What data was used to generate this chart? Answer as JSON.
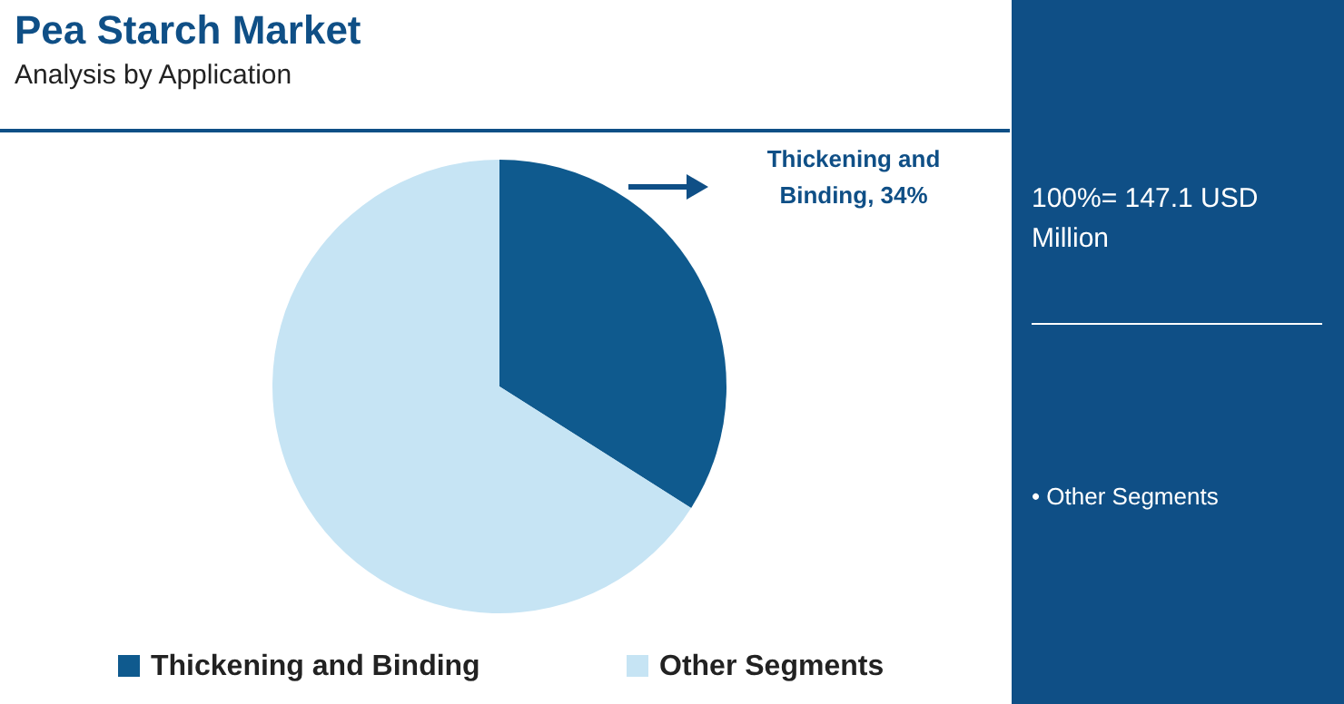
{
  "chart_data": {
    "type": "pie",
    "title": "Pea Starch Market",
    "subtitle": "Analysis by Application",
    "categories": [
      "Thickening and Binding",
      "Other Segments"
    ],
    "values": [
      34,
      66
    ],
    "colors": [
      "#0f5a8e",
      "#c6e4f4"
    ],
    "value_labels": [
      "Thickening and Binding, 34%",
      null
    ],
    "legend": "bottom",
    "annotations": [
      "100%= 147.1 USD Million",
      "• Other Segments"
    ]
  }
}
